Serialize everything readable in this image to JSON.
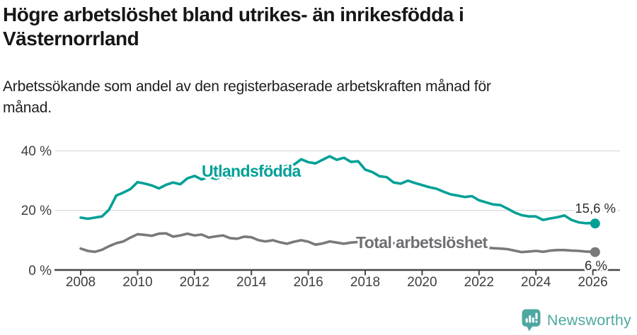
{
  "header": {
    "title_line1": "Högre arbetslöshet bland utrikes- än inrikesfödda i",
    "title_line2": "Västernorrland",
    "subtitle_line1": "Arbetssökande som andel av den registerbaserade arbetskraften månad för",
    "subtitle_line2": "månad."
  },
  "footer": {
    "brand": "Newsworthy",
    "logo_color": "#4ea8a1"
  },
  "chart_data": {
    "type": "line",
    "title": "Högre arbetslöshet bland utrikes- än inrikesfödda i Västernorrland",
    "subtitle": "Arbetssökande som andel av den registerbaserade arbetskraften månad för månad.",
    "x_axis": {
      "ticks": [
        2008,
        2010,
        2012,
        2014,
        2016,
        2018,
        2020,
        2022,
        2024,
        2026
      ],
      "range": [
        2007.1,
        2026.95
      ]
    },
    "y_axis": {
      "unit": "%",
      "tick_labels": [
        {
          "value": 40,
          "label": "40 %"
        },
        {
          "value": 20,
          "label": "20 %"
        },
        {
          "value": 0,
          "label": "0 %"
        }
      ],
      "gridline_values": [
        40,
        20
      ],
      "range": [
        0,
        45
      ]
    },
    "grid": true,
    "legend_position": "inline-labels",
    "series": [
      {
        "name": "Utlandsfödda",
        "color": "#00a096",
        "end_label": "15,6 %",
        "end_value": 15.6,
        "points": [
          [
            2008.0,
            17.6
          ],
          [
            2008.25,
            17.2
          ],
          [
            2008.5,
            17.6
          ],
          [
            2008.75,
            18.0
          ],
          [
            2009.0,
            20.3
          ],
          [
            2009.25,
            25.0
          ],
          [
            2009.5,
            26.0
          ],
          [
            2009.75,
            27.2
          ],
          [
            2010.0,
            29.5
          ],
          [
            2010.25,
            29.0
          ],
          [
            2010.5,
            28.4
          ],
          [
            2010.75,
            27.4
          ],
          [
            2011.0,
            28.6
          ],
          [
            2011.25,
            29.4
          ],
          [
            2011.5,
            28.8
          ],
          [
            2011.75,
            30.8
          ],
          [
            2012.0,
            31.6
          ],
          [
            2012.25,
            30.4
          ],
          [
            2012.5,
            31.3
          ],
          [
            2012.75,
            30.6
          ],
          [
            2013.0,
            31.4
          ],
          [
            2013.25,
            30.9
          ],
          [
            2013.5,
            31.7
          ],
          [
            2013.75,
            32.3
          ],
          [
            2014.0,
            32.0
          ],
          [
            2014.25,
            32.6
          ],
          [
            2014.5,
            33.2
          ],
          [
            2014.75,
            33.8
          ],
          [
            2015.0,
            34.3
          ],
          [
            2015.25,
            35.0
          ],
          [
            2015.5,
            35.4
          ],
          [
            2015.75,
            37.2
          ],
          [
            2016.0,
            36.2
          ],
          [
            2016.25,
            35.8
          ],
          [
            2016.5,
            37.0
          ],
          [
            2016.75,
            38.2
          ],
          [
            2017.0,
            37.0
          ],
          [
            2017.25,
            37.7
          ],
          [
            2017.5,
            36.3
          ],
          [
            2017.75,
            36.5
          ],
          [
            2018.0,
            33.7
          ],
          [
            2018.25,
            32.9
          ],
          [
            2018.5,
            31.5
          ],
          [
            2018.75,
            31.2
          ],
          [
            2019.0,
            29.4
          ],
          [
            2019.25,
            29.0
          ],
          [
            2019.5,
            30.0
          ],
          [
            2019.75,
            29.2
          ],
          [
            2020.0,
            28.5
          ],
          [
            2020.25,
            27.8
          ],
          [
            2020.5,
            27.3
          ],
          [
            2020.75,
            26.3
          ],
          [
            2021.0,
            25.4
          ],
          [
            2021.25,
            25.0
          ],
          [
            2021.5,
            24.5
          ],
          [
            2021.75,
            24.8
          ],
          [
            2022.0,
            23.4
          ],
          [
            2022.25,
            22.7
          ],
          [
            2022.5,
            22.0
          ],
          [
            2022.75,
            21.8
          ],
          [
            2023.0,
            20.6
          ],
          [
            2023.25,
            19.3
          ],
          [
            2023.5,
            18.4
          ],
          [
            2023.75,
            18.0
          ],
          [
            2024.0,
            18.0
          ],
          [
            2024.25,
            16.8
          ],
          [
            2024.5,
            17.3
          ],
          [
            2024.75,
            17.7
          ],
          [
            2025.0,
            18.3
          ],
          [
            2025.25,
            16.8
          ],
          [
            2025.5,
            16.0
          ],
          [
            2025.75,
            15.7
          ],
          [
            2026.0,
            15.8
          ],
          [
            2026.08,
            15.6
          ]
        ]
      },
      {
        "name": "Total arbetslöshet",
        "color": "#79797c",
        "end_label": "6 %",
        "end_value": 6.0,
        "points": [
          [
            2008.0,
            7.2
          ],
          [
            2008.25,
            6.4
          ],
          [
            2008.5,
            6.1
          ],
          [
            2008.75,
            6.8
          ],
          [
            2009.0,
            8.0
          ],
          [
            2009.25,
            9.0
          ],
          [
            2009.5,
            9.6
          ],
          [
            2009.75,
            10.9
          ],
          [
            2010.0,
            12.0
          ],
          [
            2010.25,
            11.8
          ],
          [
            2010.5,
            11.5
          ],
          [
            2010.75,
            12.2
          ],
          [
            2011.0,
            12.3
          ],
          [
            2011.25,
            11.2
          ],
          [
            2011.5,
            11.6
          ],
          [
            2011.75,
            12.2
          ],
          [
            2012.0,
            11.6
          ],
          [
            2012.25,
            11.9
          ],
          [
            2012.5,
            10.9
          ],
          [
            2012.75,
            11.3
          ],
          [
            2013.0,
            11.6
          ],
          [
            2013.25,
            10.7
          ],
          [
            2013.5,
            10.5
          ],
          [
            2013.75,
            11.2
          ],
          [
            2014.0,
            11.0
          ],
          [
            2014.25,
            10.0
          ],
          [
            2014.5,
            9.6
          ],
          [
            2014.75,
            10.0
          ],
          [
            2015.0,
            9.3
          ],
          [
            2015.25,
            8.8
          ],
          [
            2015.5,
            9.5
          ],
          [
            2015.75,
            10.0
          ],
          [
            2016.0,
            9.5
          ],
          [
            2016.25,
            8.5
          ],
          [
            2016.5,
            8.9
          ],
          [
            2016.75,
            9.6
          ],
          [
            2017.0,
            9.2
          ],
          [
            2017.25,
            8.8
          ],
          [
            2017.5,
            9.2
          ],
          [
            2017.75,
            9.4
          ],
          [
            2018.0,
            9.2
          ],
          [
            2018.25,
            8.8
          ],
          [
            2018.5,
            9.0
          ],
          [
            2018.75,
            9.2
          ],
          [
            2019.0,
            9.0
          ],
          [
            2019.25,
            8.7
          ],
          [
            2019.5,
            8.9
          ],
          [
            2019.75,
            9.0
          ],
          [
            2020.0,
            8.8
          ],
          [
            2020.25,
            9.2
          ],
          [
            2020.5,
            9.0
          ],
          [
            2020.75,
            8.8
          ],
          [
            2021.0,
            8.6
          ],
          [
            2021.25,
            8.3
          ],
          [
            2021.5,
            8.1
          ],
          [
            2021.75,
            8.0
          ],
          [
            2022.0,
            7.8
          ],
          [
            2022.25,
            7.6
          ],
          [
            2022.5,
            7.3
          ],
          [
            2022.75,
            7.2
          ],
          [
            2023.0,
            7.0
          ],
          [
            2023.25,
            6.5
          ],
          [
            2023.5,
            6.0
          ],
          [
            2023.75,
            6.2
          ],
          [
            2024.0,
            6.4
          ],
          [
            2024.25,
            6.1
          ],
          [
            2024.5,
            6.5
          ],
          [
            2024.75,
            6.7
          ],
          [
            2025.0,
            6.7
          ],
          [
            2025.25,
            6.5
          ],
          [
            2025.5,
            6.4
          ],
          [
            2025.75,
            6.2
          ],
          [
            2026.0,
            6.1
          ],
          [
            2026.08,
            6.0
          ]
        ]
      }
    ]
  }
}
